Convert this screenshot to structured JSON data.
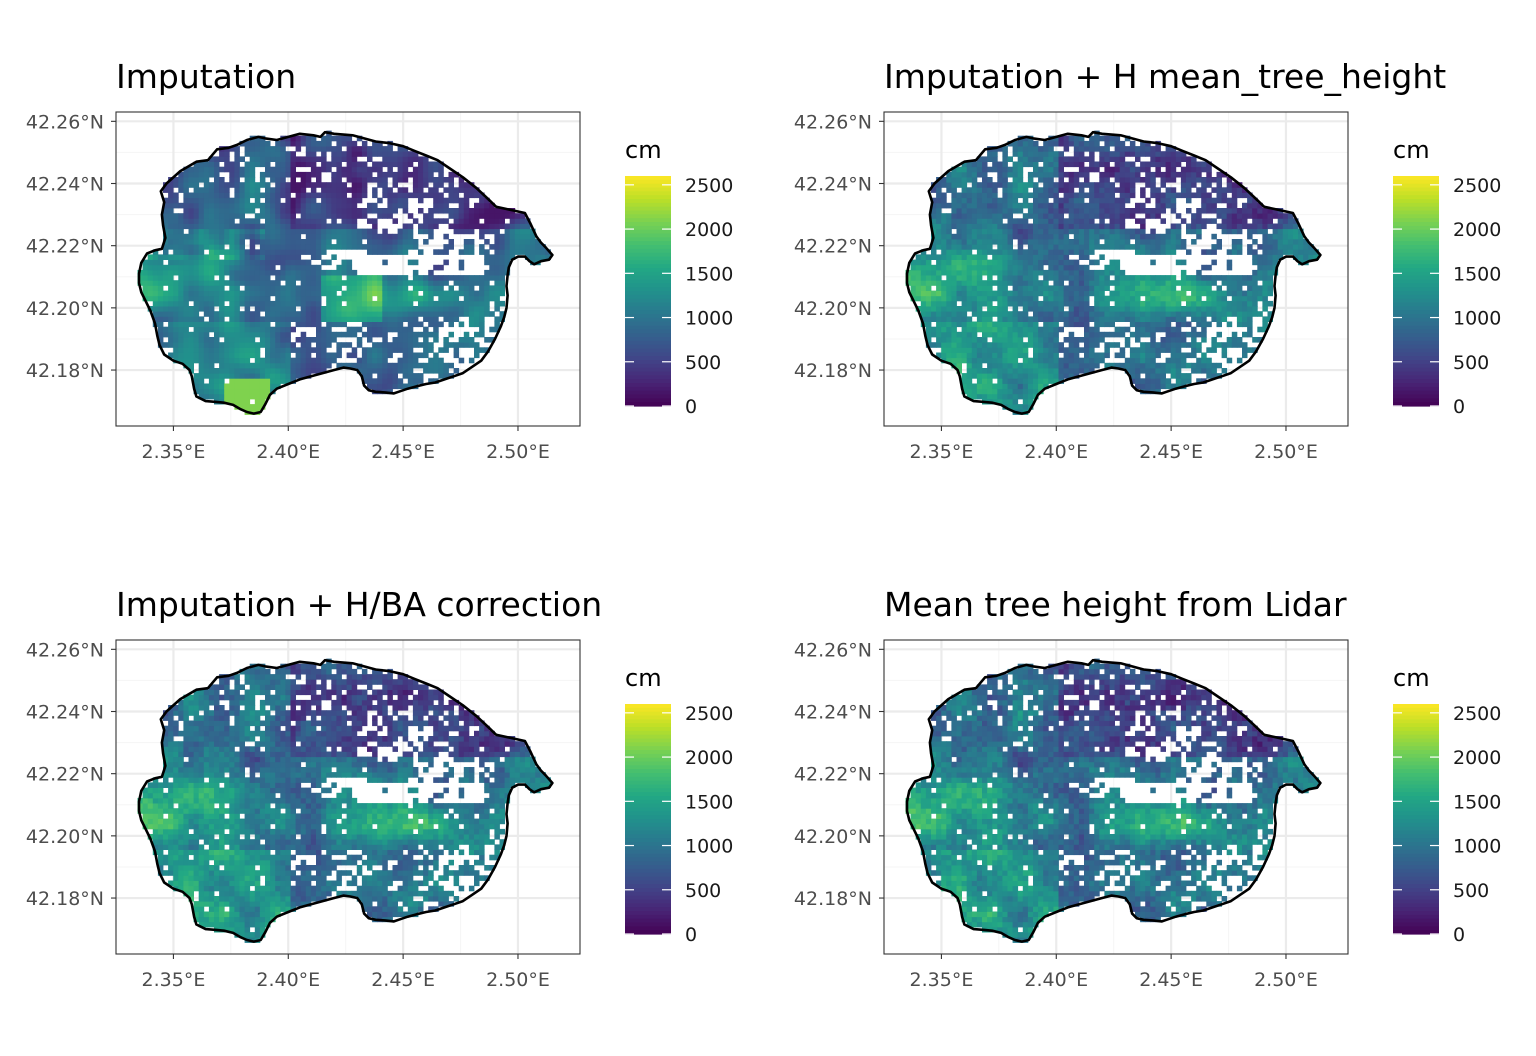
{
  "chart_data": [
    {
      "type": "heatmap",
      "title": "Imputation",
      "variant": "imputation",
      "legend": {
        "title": "cm",
        "ticks": [
          0,
          500,
          1000,
          1500,
          2000,
          2500
        ],
        "range": [
          0,
          2600
        ],
        "colormap": "viridis",
        "position": "right"
      },
      "x_ticks": [
        2.35,
        2.4,
        2.45,
        2.5
      ],
      "x_tick_labels": [
        "2.35°E",
        "2.40°E",
        "2.45°E",
        "2.50°E"
      ],
      "y_ticks": [
        42.18,
        42.2,
        42.22,
        42.24,
        42.26
      ],
      "y_tick_labels": [
        "42.18°N",
        "42.20°N",
        "42.22°N",
        "42.24°N",
        "42.26°N"
      ],
      "xlim": [
        2.325,
        2.527
      ],
      "ylim": [
        42.162,
        42.263
      ],
      "grid": true
    },
    {
      "type": "heatmap",
      "title": "Imputation + H mean_tree_height",
      "variant": "imputation_h",
      "legend": {
        "title": "cm",
        "ticks": [
          0,
          500,
          1000,
          1500,
          2000,
          2500
        ],
        "range": [
          0,
          2600
        ],
        "colormap": "viridis",
        "position": "right"
      },
      "x_ticks": [
        2.35,
        2.4,
        2.45,
        2.5
      ],
      "x_tick_labels": [
        "2.35°E",
        "2.40°E",
        "2.45°E",
        "2.50°E"
      ],
      "y_ticks": [
        42.18,
        42.2,
        42.22,
        42.24,
        42.26
      ],
      "y_tick_labels": [
        "42.18°N",
        "42.20°N",
        "42.22°N",
        "42.24°N",
        "42.26°N"
      ],
      "xlim": [
        2.325,
        2.527
      ],
      "ylim": [
        42.162,
        42.263
      ],
      "grid": true
    },
    {
      "type": "heatmap",
      "title": "Imputation + H/BA correction",
      "variant": "imputation_hba",
      "legend": {
        "title": "cm",
        "ticks": [
          0,
          500,
          1000,
          1500,
          2000,
          2500
        ],
        "range": [
          0,
          2600
        ],
        "colormap": "viridis",
        "position": "right"
      },
      "x_ticks": [
        2.35,
        2.4,
        2.45,
        2.5
      ],
      "x_tick_labels": [
        "2.35°E",
        "2.40°E",
        "2.45°E",
        "2.50°E"
      ],
      "y_ticks": [
        42.18,
        42.2,
        42.22,
        42.24,
        42.26
      ],
      "y_tick_labels": [
        "42.18°N",
        "42.20°N",
        "42.22°N",
        "42.24°N",
        "42.26°N"
      ],
      "xlim": [
        2.325,
        2.527
      ],
      "ylim": [
        42.162,
        42.263
      ],
      "grid": true
    },
    {
      "type": "heatmap",
      "title": "Mean tree height from Lidar",
      "variant": "lidar",
      "legend": {
        "title": "cm",
        "ticks": [
          0,
          500,
          1000,
          1500,
          2000,
          2500
        ],
        "range": [
          0,
          2600
        ],
        "colormap": "viridis",
        "position": "right"
      },
      "x_ticks": [
        2.35,
        2.4,
        2.45,
        2.5
      ],
      "x_tick_labels": [
        "2.35°E",
        "2.40°E",
        "2.45°E",
        "2.50°E"
      ],
      "y_ticks": [
        42.18,
        42.2,
        42.22,
        42.24,
        42.26
      ],
      "y_tick_labels": [
        "42.18°N",
        "42.20°N",
        "42.22°N",
        "42.24°N",
        "42.26°N"
      ],
      "xlim": [
        2.325,
        2.527
      ],
      "ylim": [
        42.162,
        42.263
      ],
      "grid": true
    }
  ],
  "boundary": {
    "description_units": "lon/lat",
    "points": [
      [
        2.336,
        42.2145
      ],
      [
        2.3385,
        42.2175
      ],
      [
        2.342,
        42.2185
      ],
      [
        2.345,
        42.219
      ],
      [
        2.3465,
        42.2225
      ],
      [
        2.3455,
        42.2265
      ],
      [
        2.345,
        42.23
      ],
      [
        2.346,
        42.234
      ],
      [
        2.3445,
        42.2375
      ],
      [
        2.347,
        42.24
      ],
      [
        2.353,
        42.244
      ],
      [
        2.36,
        42.247
      ],
      [
        2.365,
        42.2475
      ],
      [
        2.369,
        42.251
      ],
      [
        2.374,
        42.2515
      ],
      [
        2.378,
        42.2525
      ],
      [
        2.382,
        42.254
      ],
      [
        2.387,
        42.255
      ],
      [
        2.39,
        42.2545
      ],
      [
        2.395,
        42.254
      ],
      [
        2.4,
        42.255
      ],
      [
        2.405,
        42.256
      ],
      [
        2.411,
        42.2555
      ],
      [
        2.414,
        42.255
      ],
      [
        2.416,
        42.2565
      ],
      [
        2.42,
        42.256
      ],
      [
        2.428,
        42.2555
      ],
      [
        2.433,
        42.2545
      ],
      [
        2.438,
        42.2535
      ],
      [
        2.444,
        42.253
      ],
      [
        2.45,
        42.252
      ],
      [
        2.455,
        42.2505
      ],
      [
        2.46,
        42.249
      ],
      [
        2.465,
        42.2475
      ],
      [
        2.47,
        42.245
      ],
      [
        2.476,
        42.242
      ],
      [
        2.482,
        42.2385
      ],
      [
        2.487,
        42.235
      ],
      [
        2.4905,
        42.2325
      ],
      [
        2.495,
        42.2318
      ],
      [
        2.5,
        42.231
      ],
      [
        2.503,
        42.2305
      ],
      [
        2.5055,
        42.227
      ],
      [
        2.508,
        42.223
      ],
      [
        2.51,
        42.221
      ],
      [
        2.512,
        42.2195
      ],
      [
        2.515,
        42.217
      ],
      [
        2.5135,
        42.2155
      ],
      [
        2.51,
        42.215
      ],
      [
        2.507,
        42.214
      ],
      [
        2.505,
        42.215
      ],
      [
        2.503,
        42.2165
      ],
      [
        2.5,
        42.2165
      ],
      [
        2.4975,
        42.2155
      ],
      [
        2.496,
        42.213
      ],
      [
        2.4955,
        42.2105
      ],
      [
        2.495,
        42.207
      ],
      [
        2.4955,
        42.204
      ],
      [
        2.495,
        42.2
      ],
      [
        2.494,
        42.197
      ],
      [
        2.4925,
        42.194
      ],
      [
        2.49,
        42.19
      ],
      [
        2.487,
        42.186
      ],
      [
        2.484,
        42.183
      ],
      [
        2.48,
        42.181
      ],
      [
        2.476,
        42.179
      ],
      [
        2.472,
        42.178
      ],
      [
        2.468,
        42.177
      ],
      [
        2.464,
        42.176
      ],
      [
        2.46,
        42.1755
      ],
      [
        2.456,
        42.1748
      ],
      [
        2.452,
        42.174
      ],
      [
        2.448,
        42.173
      ],
      [
        2.446,
        42.1725
      ],
      [
        2.442,
        42.1728
      ],
      [
        2.438,
        42.173
      ],
      [
        2.435,
        42.1735
      ],
      [
        2.433,
        42.175
      ],
      [
        2.432,
        42.178
      ],
      [
        2.43,
        42.18
      ],
      [
        2.427,
        42.1805
      ],
      [
        2.424,
        42.1808
      ],
      [
        2.42,
        42.18
      ],
      [
        2.415,
        42.179
      ],
      [
        2.41,
        42.178
      ],
      [
        2.405,
        42.177
      ],
      [
        2.4,
        42.1755
      ],
      [
        2.395,
        42.174
      ],
      [
        2.392,
        42.172
      ],
      [
        2.39,
        42.169
      ],
      [
        2.388,
        42.1665
      ],
      [
        2.385,
        42.166
      ],
      [
        2.382,
        42.1665
      ],
      [
        2.379,
        42.1675
      ],
      [
        2.376,
        42.1688
      ],
      [
        2.372,
        42.1695
      ],
      [
        2.368,
        42.1698
      ],
      [
        2.364,
        42.17
      ],
      [
        2.36,
        42.1715
      ],
      [
        2.359,
        42.174
      ],
      [
        2.358,
        42.178
      ],
      [
        2.357,
        42.18
      ],
      [
        2.354,
        42.182
      ],
      [
        2.35,
        42.183
      ],
      [
        2.346,
        42.185
      ],
      [
        2.344,
        42.188
      ],
      [
        2.343,
        42.191
      ],
      [
        2.342,
        42.195
      ],
      [
        2.34,
        42.199
      ],
      [
        2.338,
        42.202
      ],
      [
        2.336,
        42.205
      ],
      [
        2.335,
        42.208
      ],
      [
        2.335,
        42.211
      ],
      [
        2.336,
        42.2145
      ]
    ]
  }
}
